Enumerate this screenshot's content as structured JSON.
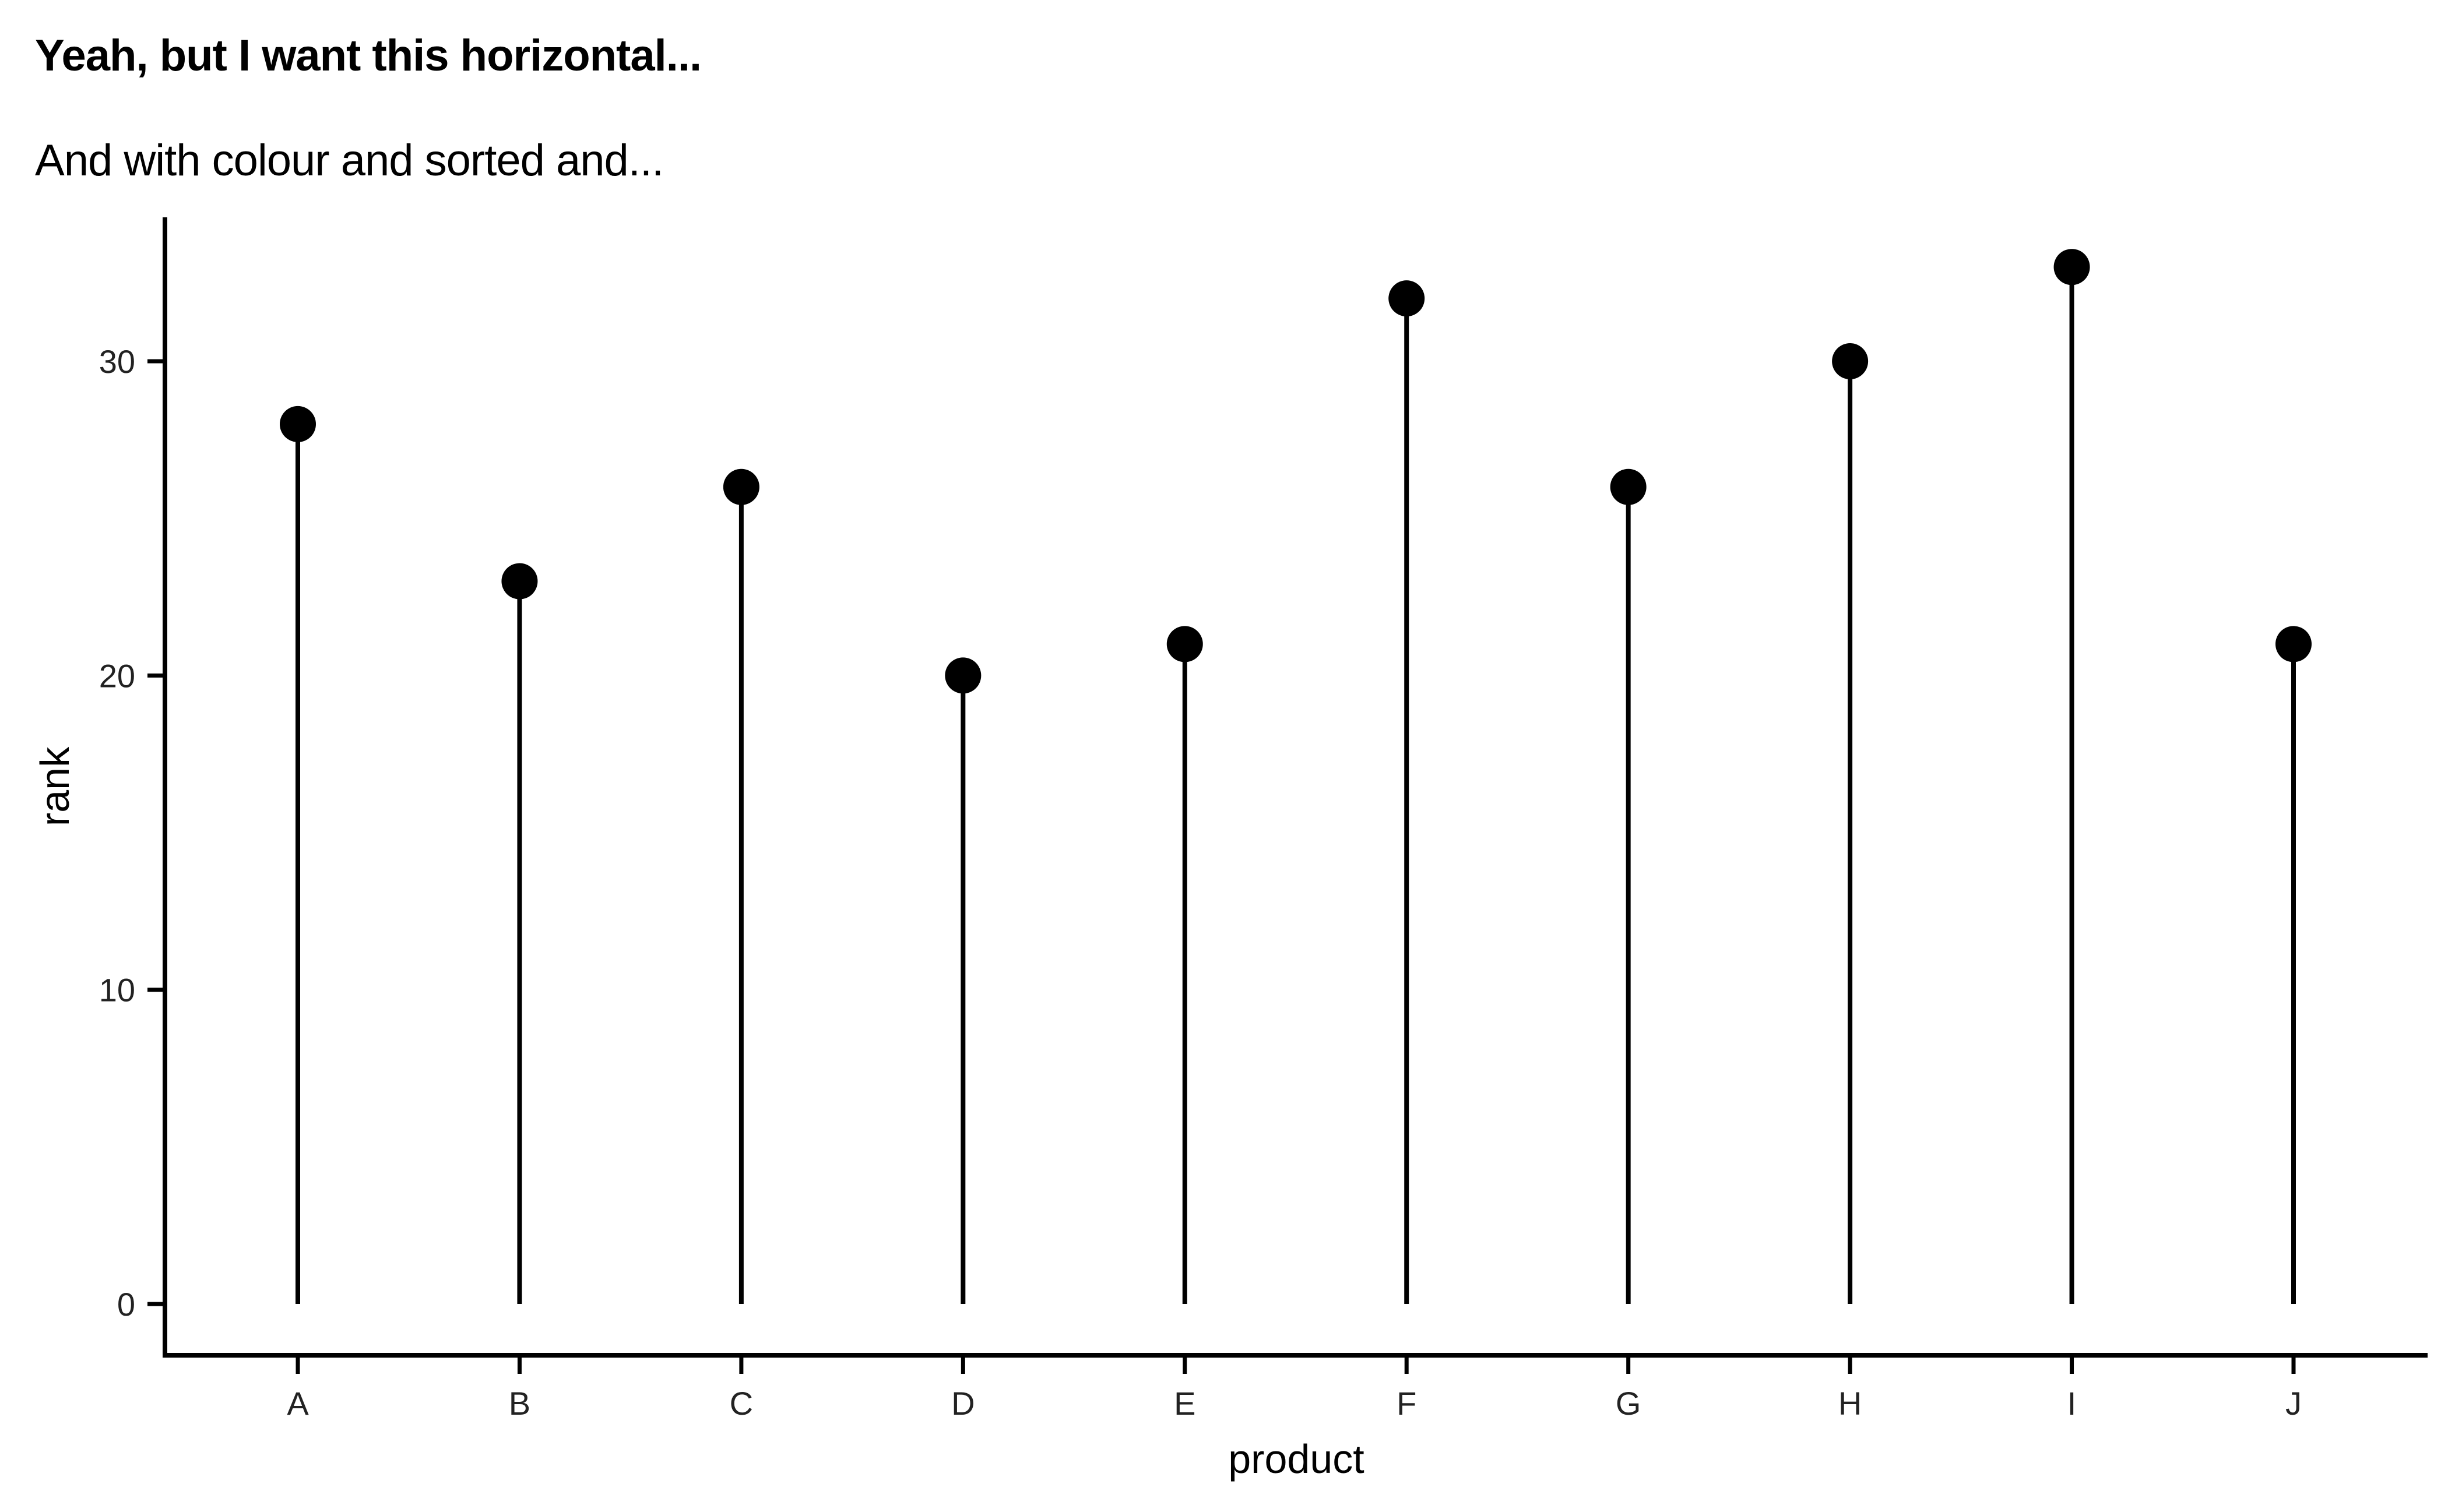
{
  "chart_data": {
    "type": "lollipop",
    "title": "Yeah, but I want this horizontal...",
    "subtitle": "And with colour and sorted and...",
    "xlabel": "product",
    "ylabel": "rank",
    "categories": [
      "A",
      "B",
      "C",
      "D",
      "E",
      "F",
      "G",
      "H",
      "I",
      "J"
    ],
    "values": [
      28,
      23,
      26,
      20,
      21,
      32,
      26,
      30,
      33,
      21
    ],
    "y_ticks": [
      0,
      10,
      20,
      30
    ],
    "ylim": [
      -1.6,
      34.6
    ],
    "grid": false,
    "legend": "none",
    "colors": {
      "mark": "#000000",
      "axis": "#000000",
      "tick_text": "#222222"
    }
  }
}
